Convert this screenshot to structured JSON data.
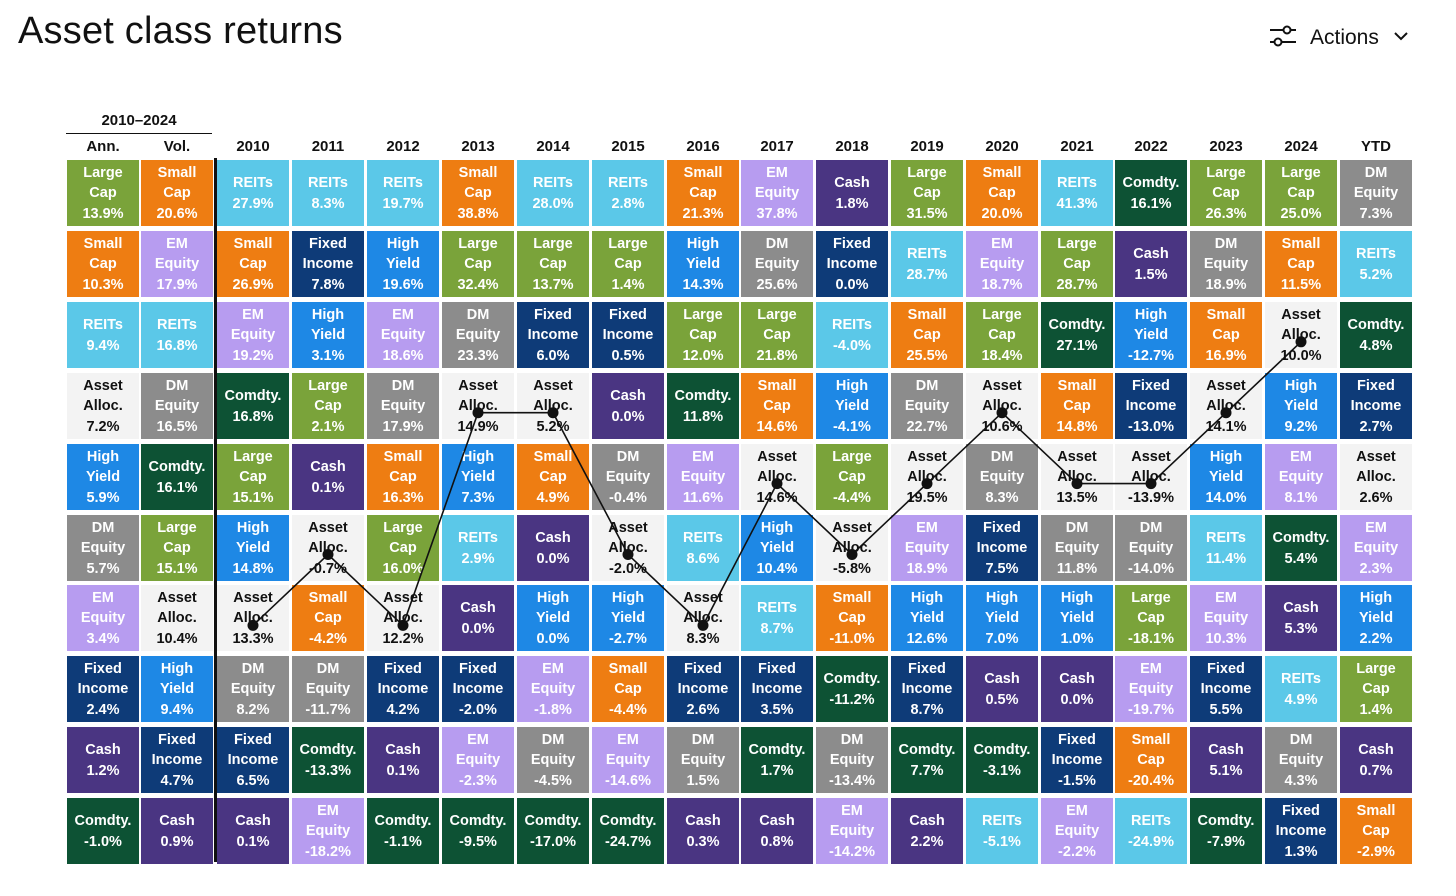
{
  "header": {
    "title": "Asset class returns",
    "actions_label": "Actions",
    "actions_icon": "sliders-icon",
    "actions_chevron": "chevron-down-icon"
  },
  "chart_data": {
    "type": "table",
    "title": "Asset class returns",
    "summary_header": "2010–2024",
    "columns": [
      "Ann.",
      "Vol.",
      "2010",
      "2011",
      "2012",
      "2013",
      "2014",
      "2015",
      "2016",
      "2017",
      "2018",
      "2019",
      "2020",
      "2021",
      "2022",
      "2023",
      "2024",
      "YTD"
    ],
    "asset_classes": {
      "REITs": {
        "label": "REITs",
        "color": "#5bc8e8",
        "text": "#ffffff"
      },
      "Large": {
        "label": "Large\nCap",
        "color": "#7aa33a",
        "text": "#ffffff"
      },
      "Small": {
        "label": "Small\nCap",
        "color": "#ee7d12",
        "text": "#ffffff"
      },
      "EM": {
        "label": "EM\nEquity",
        "color": "#b79cf0",
        "text": "#ffffff"
      },
      "DM": {
        "label": "DM\nEquity",
        "color": "#8c8c8c",
        "text": "#ffffff"
      },
      "HY": {
        "label": "High\nYield",
        "color": "#1e88e5",
        "text": "#ffffff"
      },
      "FI": {
        "label": "Fixed\nIncome",
        "color": "#0e3b78",
        "text": "#ffffff"
      },
      "Cash": {
        "label": "Cash",
        "color": "#4a3582",
        "text": "#ffffff"
      },
      "Comdty": {
        "label": "Comdty.",
        "color": "#0d5234",
        "text": "#ffffff"
      },
      "Asset": {
        "label": "Asset\nAlloc.",
        "color": "#f3f3f3",
        "text": "#111111"
      }
    },
    "cells": [
      [
        [
          "Large",
          "13.9%"
        ],
        [
          "Small",
          "10.3%"
        ],
        [
          "REITs",
          "9.4%"
        ],
        [
          "Asset",
          "7.2%"
        ],
        [
          "HY",
          "5.9%"
        ],
        [
          "DM",
          "5.7%"
        ],
        [
          "EM",
          "3.4%"
        ],
        [
          "FI",
          "2.4%"
        ],
        [
          "Cash",
          "1.2%"
        ],
        [
          "Comdty",
          "-1.0%"
        ]
      ],
      [
        [
          "Small",
          "20.6%"
        ],
        [
          "EM",
          "17.9%"
        ],
        [
          "REITs",
          "16.8%"
        ],
        [
          "DM",
          "16.5%"
        ],
        [
          "Comdty",
          "16.1%"
        ],
        [
          "Large",
          "15.1%"
        ],
        [
          "Asset",
          "10.4%"
        ],
        [
          "HY",
          "9.4%"
        ],
        [
          "FI",
          "4.7%"
        ],
        [
          "Cash",
          "0.9%"
        ]
      ],
      [
        [
          "REITs",
          "27.9%"
        ],
        [
          "Small",
          "26.9%"
        ],
        [
          "EM",
          "19.2%"
        ],
        [
          "Comdty",
          "16.8%"
        ],
        [
          "Large",
          "15.1%"
        ],
        [
          "HY",
          "14.8%"
        ],
        [
          "Asset",
          "13.3%"
        ],
        [
          "DM",
          "8.2%"
        ],
        [
          "FI",
          "6.5%"
        ],
        [
          "Cash",
          "0.1%"
        ]
      ],
      [
        [
          "REITs",
          "8.3%"
        ],
        [
          "FI",
          "7.8%"
        ],
        [
          "HY",
          "3.1%"
        ],
        [
          "Large",
          "2.1%"
        ],
        [
          "Cash",
          "0.1%"
        ],
        [
          "Asset",
          "-0.7%"
        ],
        [
          "Small",
          "-4.2%"
        ],
        [
          "DM",
          "-11.7%"
        ],
        [
          "Comdty",
          "-13.3%"
        ],
        [
          "EM",
          "-18.2%"
        ]
      ],
      [
        [
          "REITs",
          "19.7%"
        ],
        [
          "HY",
          "19.6%"
        ],
        [
          "EM",
          "18.6%"
        ],
        [
          "DM",
          "17.9%"
        ],
        [
          "Small",
          "16.3%"
        ],
        [
          "Large",
          "16.0%"
        ],
        [
          "Asset",
          "12.2%"
        ],
        [
          "FI",
          "4.2%"
        ],
        [
          "Cash",
          "0.1%"
        ],
        [
          "Comdty",
          "-1.1%"
        ]
      ],
      [
        [
          "Small",
          "38.8%"
        ],
        [
          "Large",
          "32.4%"
        ],
        [
          "DM",
          "23.3%"
        ],
        [
          "Asset",
          "14.9%"
        ],
        [
          "HY",
          "7.3%"
        ],
        [
          "REITs",
          "2.9%"
        ],
        [
          "Cash",
          "0.0%"
        ],
        [
          "FI",
          "-2.0%"
        ],
        [
          "EM",
          "-2.3%"
        ],
        [
          "Comdty",
          "-9.5%"
        ]
      ],
      [
        [
          "REITs",
          "28.0%"
        ],
        [
          "Large",
          "13.7%"
        ],
        [
          "FI",
          "6.0%"
        ],
        [
          "Asset",
          "5.2%"
        ],
        [
          "Small",
          "4.9%"
        ],
        [
          "Cash",
          "0.0%"
        ],
        [
          "HY",
          "0.0%"
        ],
        [
          "EM",
          "-1.8%"
        ],
        [
          "DM",
          "-4.5%"
        ],
        [
          "Comdty",
          "-17.0%"
        ]
      ],
      [
        [
          "REITs",
          "2.8%"
        ],
        [
          "Large",
          "1.4%"
        ],
        [
          "FI",
          "0.5%"
        ],
        [
          "Cash",
          "0.0%"
        ],
        [
          "DM",
          "-0.4%"
        ],
        [
          "Asset",
          "-2.0%"
        ],
        [
          "HY",
          "-2.7%"
        ],
        [
          "Small",
          "-4.4%"
        ],
        [
          "EM",
          "-14.6%"
        ],
        [
          "Comdty",
          "-24.7%"
        ]
      ],
      [
        [
          "Small",
          "21.3%"
        ],
        [
          "HY",
          "14.3%"
        ],
        [
          "Large",
          "12.0%"
        ],
        [
          "Comdty",
          "11.8%"
        ],
        [
          "EM",
          "11.6%"
        ],
        [
          "REITs",
          "8.6%"
        ],
        [
          "Asset",
          "8.3%"
        ],
        [
          "FI",
          "2.6%"
        ],
        [
          "DM",
          "1.5%"
        ],
        [
          "Cash",
          "0.3%"
        ]
      ],
      [
        [
          "EM",
          "37.8%"
        ],
        [
          "DM",
          "25.6%"
        ],
        [
          "Large",
          "21.8%"
        ],
        [
          "Small",
          "14.6%"
        ],
        [
          "Asset",
          "14.6%"
        ],
        [
          "HY",
          "10.4%"
        ],
        [
          "REITs",
          "8.7%"
        ],
        [
          "FI",
          "3.5%"
        ],
        [
          "Comdty",
          "1.7%"
        ],
        [
          "Cash",
          "0.8%"
        ]
      ],
      [
        [
          "Cash",
          "1.8%"
        ],
        [
          "FI",
          "0.0%"
        ],
        [
          "REITs",
          "-4.0%"
        ],
        [
          "HY",
          "-4.1%"
        ],
        [
          "Large",
          "-4.4%"
        ],
        [
          "Asset",
          "-5.8%"
        ],
        [
          "Small",
          "-11.0%"
        ],
        [
          "Comdty",
          "-11.2%"
        ],
        [
          "DM",
          "-13.4%"
        ],
        [
          "EM",
          "-14.2%"
        ]
      ],
      [
        [
          "Large",
          "31.5%"
        ],
        [
          "REITs",
          "28.7%"
        ],
        [
          "Small",
          "25.5%"
        ],
        [
          "DM",
          "22.7%"
        ],
        [
          "Asset",
          "19.5%"
        ],
        [
          "EM",
          "18.9%"
        ],
        [
          "HY",
          "12.6%"
        ],
        [
          "FI",
          "8.7%"
        ],
        [
          "Comdty",
          "7.7%"
        ],
        [
          "Cash",
          "2.2%"
        ]
      ],
      [
        [
          "Small",
          "20.0%"
        ],
        [
          "EM",
          "18.7%"
        ],
        [
          "Large",
          "18.4%"
        ],
        [
          "Asset",
          "10.6%"
        ],
        [
          "DM",
          "8.3%"
        ],
        [
          "FI",
          "7.5%"
        ],
        [
          "HY",
          "7.0%"
        ],
        [
          "Cash",
          "0.5%"
        ],
        [
          "Comdty",
          "-3.1%"
        ],
        [
          "REITs",
          "-5.1%"
        ]
      ],
      [
        [
          "REITs",
          "41.3%"
        ],
        [
          "Large",
          "28.7%"
        ],
        [
          "Comdty",
          "27.1%"
        ],
        [
          "Small",
          "14.8%"
        ],
        [
          "Asset",
          "13.5%"
        ],
        [
          "DM",
          "11.8%"
        ],
        [
          "HY",
          "1.0%"
        ],
        [
          "Cash",
          "0.0%"
        ],
        [
          "FI",
          "-1.5%"
        ],
        [
          "EM",
          "-2.2%"
        ]
      ],
      [
        [
          "Comdty",
          "16.1%"
        ],
        [
          "Cash",
          "1.5%"
        ],
        [
          "HY",
          "-12.7%"
        ],
        [
          "FI",
          "-13.0%"
        ],
        [
          "Asset",
          "-13.9%"
        ],
        [
          "DM",
          "-14.0%"
        ],
        [
          "Large",
          "-18.1%"
        ],
        [
          "EM",
          "-19.7%"
        ],
        [
          "Small",
          "-20.4%"
        ],
        [
          "REITs",
          "-24.9%"
        ]
      ],
      [
        [
          "Large",
          "26.3%"
        ],
        [
          "DM",
          "18.9%"
        ],
        [
          "Small",
          "16.9%"
        ],
        [
          "Asset",
          "14.1%"
        ],
        [
          "HY",
          "14.0%"
        ],
        [
          "REITs",
          "11.4%"
        ],
        [
          "EM",
          "10.3%"
        ],
        [
          "FI",
          "5.5%"
        ],
        [
          "Cash",
          "5.1%"
        ],
        [
          "Comdty",
          "-7.9%"
        ]
      ],
      [
        [
          "Large",
          "25.0%"
        ],
        [
          "Small",
          "11.5%"
        ],
        [
          "Asset",
          "10.0%"
        ],
        [
          "HY",
          "9.2%"
        ],
        [
          "EM",
          "8.1%"
        ],
        [
          "Comdty",
          "5.4%"
        ],
        [
          "Cash",
          "5.3%"
        ],
        [
          "REITs",
          "4.9%"
        ],
        [
          "DM",
          "4.3%"
        ],
        [
          "FI",
          "1.3%"
        ]
      ],
      [
        [
          "DM",
          "7.3%"
        ],
        [
          "REITs",
          "5.2%"
        ],
        [
          "Comdty",
          "4.8%"
        ],
        [
          "FI",
          "2.7%"
        ],
        [
          "Asset",
          "2.6%"
        ],
        [
          "EM",
          "2.3%"
        ],
        [
          "HY",
          "2.2%"
        ],
        [
          "Large",
          "1.4%"
        ],
        [
          "Cash",
          "0.7%"
        ],
        [
          "Small",
          "-2.9%"
        ]
      ]
    ],
    "asset_alloc_line": {
      "x": [
        "2010",
        "2011",
        "2012",
        "2013",
        "2014",
        "2015",
        "2016",
        "2017",
        "2018",
        "2019",
        "2020",
        "2021",
        "2022",
        "2023",
        "2024"
      ],
      "rank": [
        7,
        6,
        7,
        4,
        4,
        6,
        7,
        5,
        6,
        5,
        4,
        5,
        5,
        4,
        3
      ]
    }
  }
}
